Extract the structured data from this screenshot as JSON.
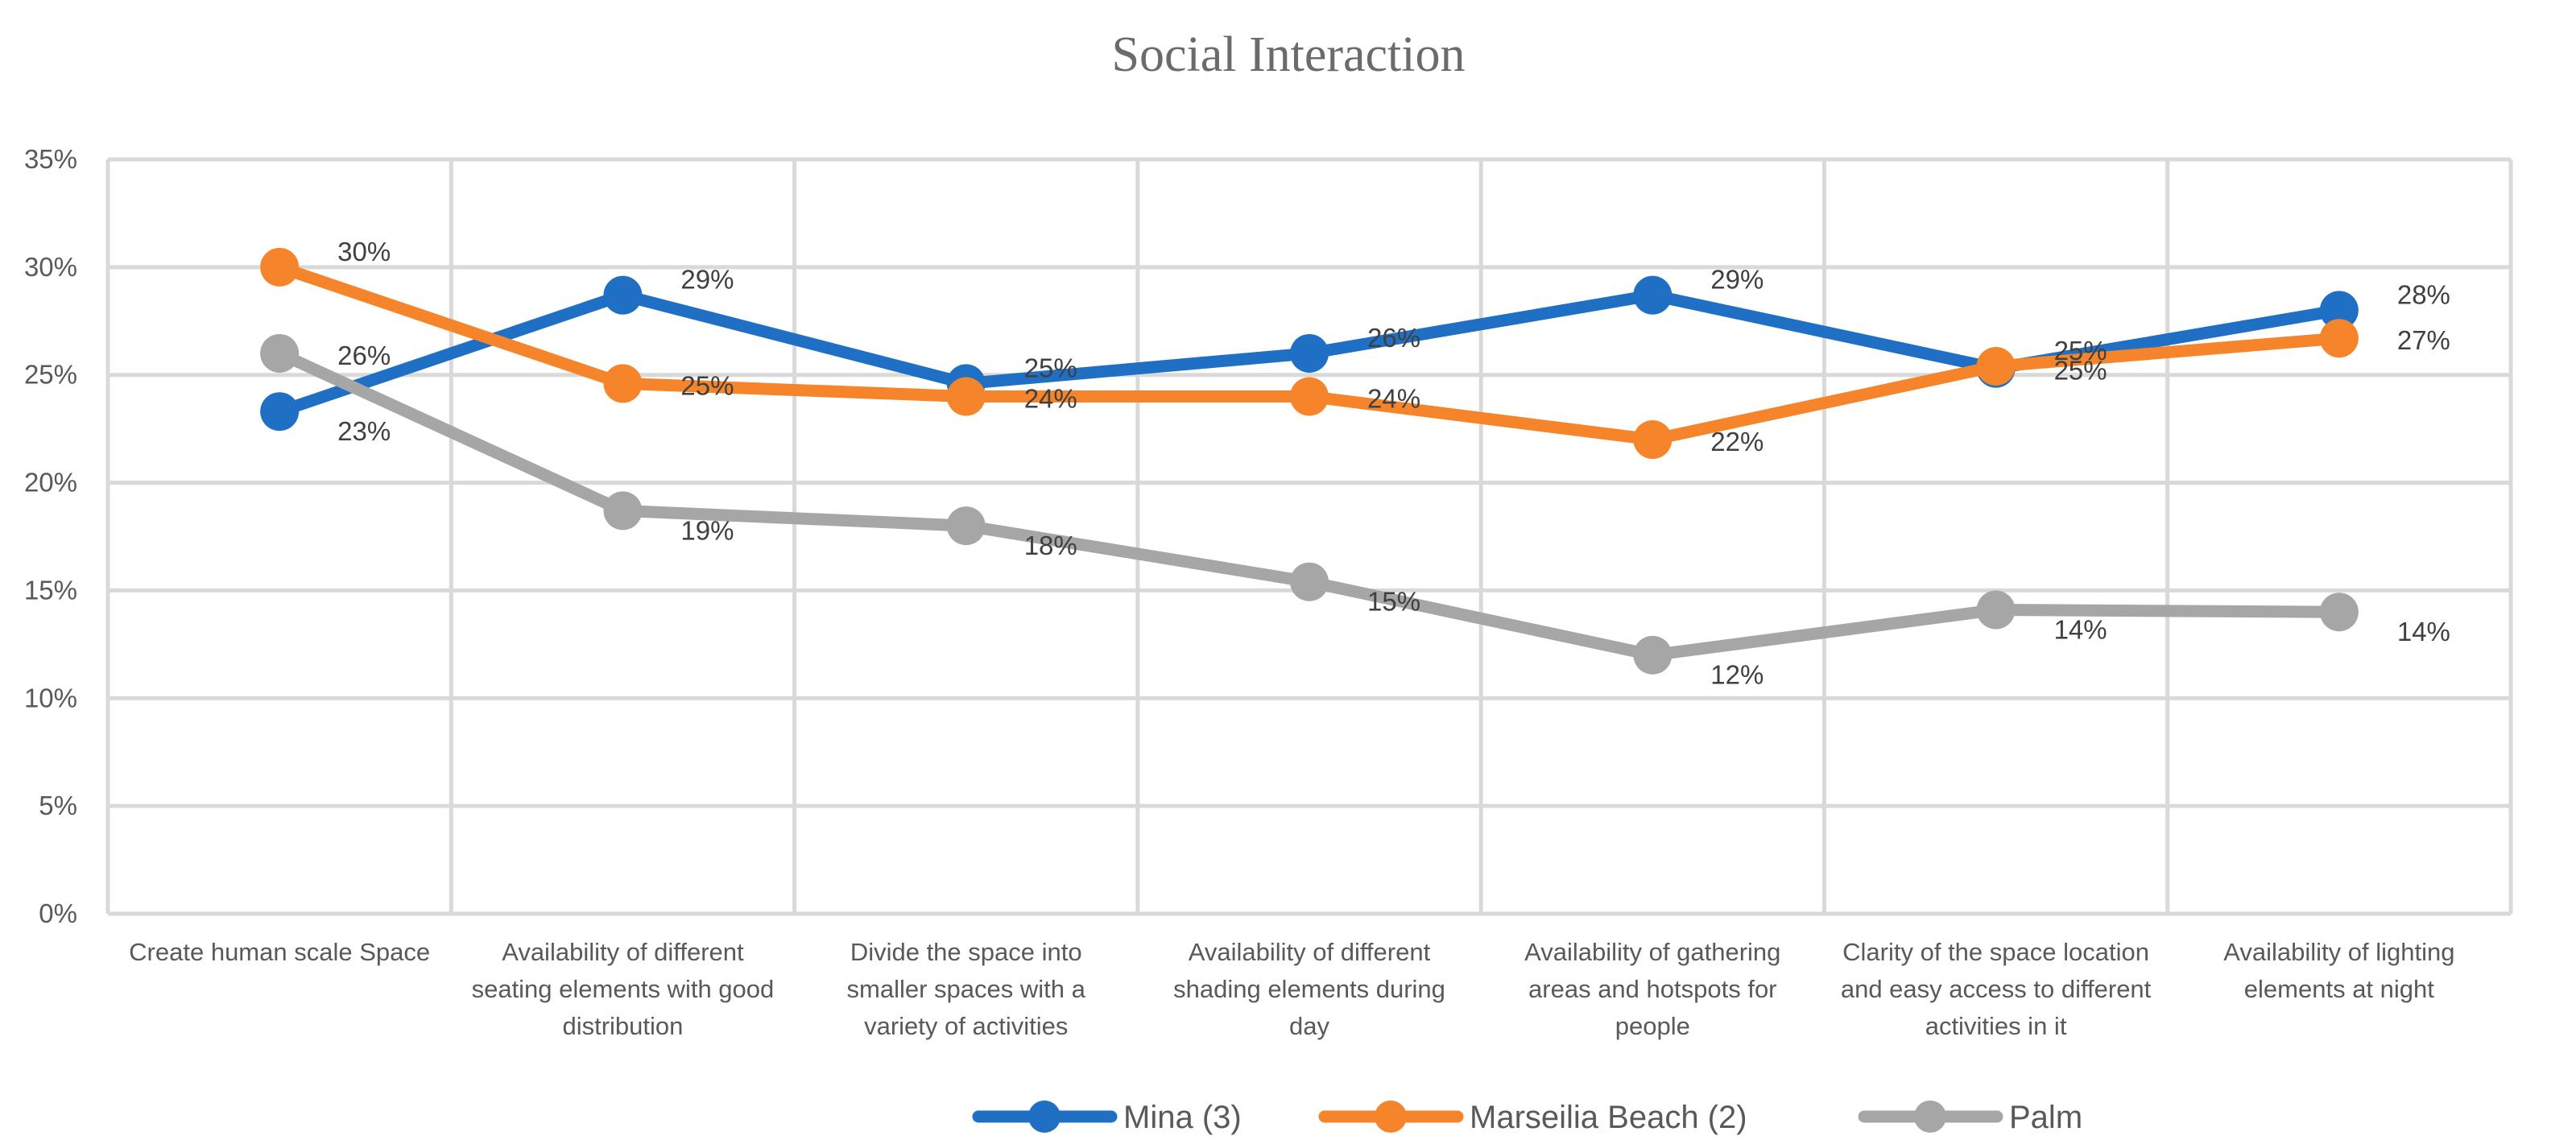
{
  "chart_data": {
    "type": "line",
    "title": "Social Interaction",
    "xlabel": "",
    "ylabel": "",
    "ylim": [
      0,
      35
    ],
    "yticks": [
      0,
      5,
      10,
      15,
      20,
      25,
      30,
      35
    ],
    "ytick_labels": [
      "0%",
      "5%",
      "10%",
      "15%",
      "20%",
      "25%",
      "30%",
      "35%"
    ],
    "grid": true,
    "legend_position": "bottom",
    "categories": [
      "Create human scale Space",
      "Availability of different seating elements with good distribution",
      "Divide the space into smaller spaces with a variety of activities",
      "Availability of different shading elements during day",
      "Availability of gathering areas and hotspots for people",
      "Clarity of the space location and easy access to different activities in it",
      "Availability of lighting elements at night"
    ],
    "category_lines": [
      [
        "Create human scale Space"
      ],
      [
        "Availability of different",
        "seating elements with good",
        "distribution"
      ],
      [
        "Divide the space into",
        "smaller spaces with a",
        "variety of activities"
      ],
      [
        "Availability of different",
        "shading elements during",
        "day"
      ],
      [
        "Availability of gathering",
        "areas and hotspots for",
        "people"
      ],
      [
        "Clarity of the space location",
        "and easy access to different",
        "activities in it"
      ],
      [
        "Availability of lighting",
        "elements at night"
      ]
    ],
    "series": [
      {
        "name": "Mina (3)",
        "color": "#1f6fc5",
        "values": [
          23.3,
          28.7,
          24.6,
          26.0,
          28.7,
          25.3,
          28.0
        ],
        "labels": [
          "23%",
          "29%",
          "25%",
          "26%",
          "29%",
          "25%",
          "28%"
        ]
      },
      {
        "name": "Marseilia Beach (2)",
        "color": "#f5842a",
        "values": [
          30.0,
          24.6,
          24.0,
          24.0,
          22.0,
          25.4,
          26.7
        ],
        "labels": [
          "30%",
          "25%",
          "24%",
          "24%",
          "22%",
          "25%",
          "27%"
        ]
      },
      {
        "name": "Palm",
        "color": "#a6a6a6",
        "values": [
          26.0,
          18.7,
          18.0,
          15.4,
          12.0,
          14.1,
          14.0
        ],
        "labels": [
          "26%",
          "19%",
          "18%",
          "15%",
          "12%",
          "14%",
          "14%"
        ]
      }
    ]
  }
}
